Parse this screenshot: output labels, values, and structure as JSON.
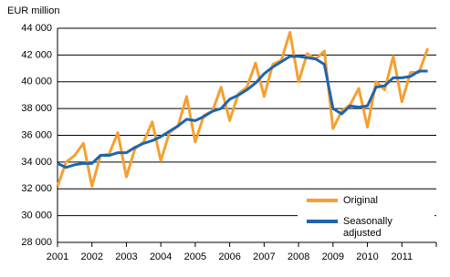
{
  "chart_data": {
    "type": "line",
    "y_label": "EUR million",
    "x": [
      2001,
      2001.25,
      2001.5,
      2001.75,
      2002,
      2002.25,
      2002.5,
      2002.75,
      2003,
      2003.25,
      2003.5,
      2003.75,
      2004,
      2004.25,
      2004.5,
      2004.75,
      2005,
      2005.25,
      2005.5,
      2005.75,
      2006,
      2006.25,
      2006.5,
      2006.75,
      2007,
      2007.25,
      2007.5,
      2007.75,
      2008,
      2008.25,
      2008.5,
      2008.75,
      2009,
      2009.25,
      2009.5,
      2009.75,
      2010,
      2010.25,
      2010.5,
      2010.75,
      2011,
      2011.25,
      2011.5,
      2011.75
    ],
    "series": [
      {
        "name": "Original",
        "color": "#f5a031",
        "values": [
          32200,
          34000,
          34500,
          35400,
          32200,
          34500,
          34600,
          36200,
          32900,
          35000,
          35500,
          37000,
          34100,
          36200,
          36700,
          38900,
          35500,
          37500,
          37800,
          39600,
          37100,
          39100,
          39600,
          41400,
          38900,
          41300,
          41600,
          43700,
          40000,
          42100,
          41700,
          42300,
          36500,
          37800,
          38300,
          39500,
          36600,
          40000,
          39400,
          41900,
          38500,
          40700,
          40700,
          42500
        ]
      },
      {
        "name": "Seasonally adjusted",
        "color": "#1f64ad",
        "values": [
          33900,
          33600,
          33800,
          33900,
          33900,
          34500,
          34500,
          34700,
          34700,
          35100,
          35400,
          35600,
          35900,
          36300,
          36700,
          37200,
          37100,
          37400,
          37800,
          38000,
          38700,
          39000,
          39400,
          39900,
          40600,
          41100,
          41500,
          41900,
          41900,
          41800,
          41700,
          41300,
          38000,
          37600,
          38200,
          38100,
          38200,
          39600,
          39700,
          40300,
          40300,
          40400,
          40800,
          40800
        ]
      }
    ],
    "xlim": [
      2001,
      2012
    ],
    "xticks": [
      2001,
      2002,
      2003,
      2004,
      2005,
      2006,
      2007,
      2008,
      2009,
      2010,
      2011
    ],
    "ylim": [
      28000,
      44000
    ],
    "yticks": [
      {
        "value": 28000,
        "label": "28 000"
      },
      {
        "value": 30000,
        "label": "30 000"
      },
      {
        "value": 32000,
        "label": "32 000"
      },
      {
        "value": 34000,
        "label": "34 000"
      },
      {
        "value": 36000,
        "label": "36 000"
      },
      {
        "value": 38000,
        "label": "38 000"
      },
      {
        "value": 40000,
        "label": "40 000"
      },
      {
        "value": 42000,
        "label": "42 000"
      },
      {
        "value": 44000,
        "label": "44 000"
      }
    ],
    "grid": true,
    "legend": "lower right"
  }
}
